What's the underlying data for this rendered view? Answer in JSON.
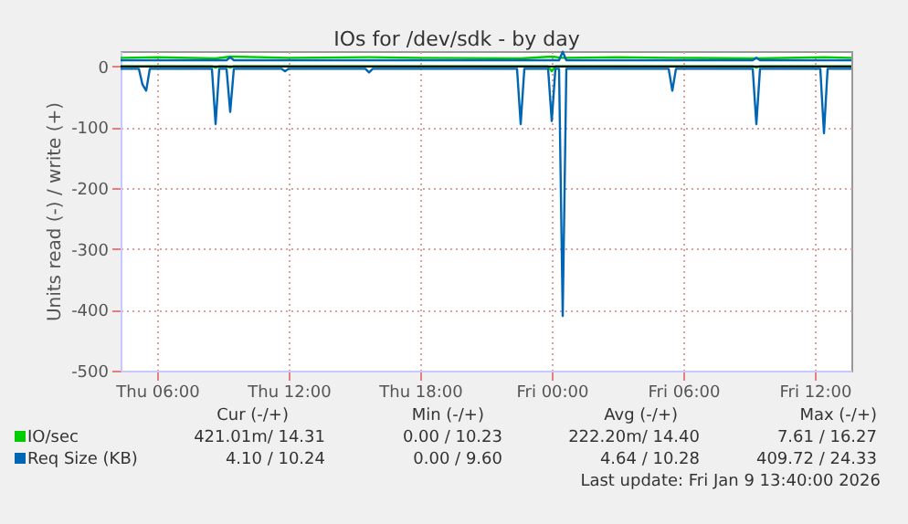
{
  "chart_data": {
    "type": "line",
    "title": "IOs for /dev/sdk - by day",
    "ylabel": "Units read (-) / write (+)",
    "xlim": [
      "2026-01-08T04:20",
      "2026-01-09T13:40"
    ],
    "xticks": [
      {
        "value": "2026-01-08T06:00",
        "label": "Thu 06:00"
      },
      {
        "value": "2026-01-08T12:00",
        "label": "Thu 12:00"
      },
      {
        "value": "2026-01-08T18:00",
        "label": "Thu 18:00"
      },
      {
        "value": "2026-01-09T00:00",
        "label": "Fri 00:00"
      },
      {
        "value": "2026-01-09T06:00",
        "label": "Fri 06:00"
      },
      {
        "value": "2026-01-09T12:00",
        "label": "Fri 12:00"
      }
    ],
    "ylim": [
      -500,
      25
    ],
    "yticks": [
      -500,
      -400,
      -300,
      -200,
      -100,
      0
    ],
    "grid": true,
    "legend": "bottom left",
    "ref_lines": [
      {
        "axis": "y",
        "value": 0,
        "color": "#000000"
      }
    ],
    "series": [
      {
        "name": "IO/sec",
        "color": "#00cc00",
        "x": [
          "2026-01-08T04:20",
          "2026-01-08T06:00",
          "2026-01-08T08:40",
          "2026-01-08T09:20",
          "2026-01-08T12:00",
          "2026-01-08T15:40",
          "2026-01-08T18:00",
          "2026-01-08T22:35",
          "2026-01-09T00:00",
          "2026-01-09T00:30",
          "2026-01-09T03:00",
          "2026-01-09T05:30",
          "2026-01-09T09:20",
          "2026-01-09T12:25",
          "2026-01-09T13:40"
        ],
        "values": [
          14,
          15,
          13,
          16,
          14,
          15,
          14,
          13,
          16,
          14,
          15,
          14,
          13,
          15,
          14
        ]
      },
      {
        "color": "#00cc00",
        "x": [
          "2026-01-08T04:20",
          "2026-01-08T08:30",
          "2026-01-08T08:40",
          "2026-01-08T08:50",
          "2026-01-08T09:10",
          "2026-01-08T09:20",
          "2026-01-08T09:30",
          "2026-01-08T23:50",
          "2026-01-09T00:00",
          "2026-01-09T00:10",
          "2026-01-09T09:10",
          "2026-01-09T09:20",
          "2026-01-09T09:30",
          "2026-01-09T13:40"
        ],
        "values": [
          0,
          0,
          -2,
          0,
          0,
          -2,
          0,
          0,
          -8,
          0,
          0,
          -2,
          0,
          0
        ]
      },
      {
        "name": "Req Size (KB)",
        "color": "#0066b3",
        "x": [
          "2026-01-08T04:20",
          "2026-01-08T09:10",
          "2026-01-08T09:20",
          "2026-01-08T09:30",
          "2026-01-09T00:20",
          "2026-01-09T00:30",
          "2026-01-09T00:40",
          "2026-01-09T09:10",
          "2026-01-09T09:20",
          "2026-01-09T09:30",
          "2026-01-09T13:40"
        ],
        "values": [
          10,
          10,
          15,
          10,
          10,
          24,
          10,
          10,
          14,
          10,
          10
        ]
      },
      {
        "color": "#0066b3",
        "x": [
          "2026-01-08T04:20",
          "2026-01-08T05:10",
          "2026-01-08T05:20",
          "2026-01-08T05:30",
          "2026-01-08T05:40",
          "2026-01-08T08:30",
          "2026-01-08T08:40",
          "2026-01-08T08:50",
          "2026-01-08T09:10",
          "2026-01-08T09:20",
          "2026-01-08T09:30",
          "2026-01-08T11:40",
          "2026-01-08T11:50",
          "2026-01-08T12:00",
          "2026-01-08T15:30",
          "2026-01-08T15:40",
          "2026-01-08T15:50",
          "2026-01-08T22:25",
          "2026-01-08T22:35",
          "2026-01-08T22:45",
          "2026-01-08T23:50",
          "2026-01-09T00:00",
          "2026-01-09T00:10",
          "2026-01-09T00:20",
          "2026-01-09T00:30",
          "2026-01-09T00:40",
          "2026-01-09T05:20",
          "2026-01-09T05:30",
          "2026-01-09T05:40",
          "2026-01-09T09:10",
          "2026-01-09T09:20",
          "2026-01-09T09:30",
          "2026-01-09T12:15",
          "2026-01-09T12:25",
          "2026-01-09T12:35",
          "2026-01-09T13:40"
        ],
        "values": [
          -4,
          -4,
          -30,
          -40,
          -4,
          -4,
          -95,
          -4,
          -4,
          -75,
          -4,
          -4,
          -8,
          -4,
          -4,
          -10,
          -4,
          -4,
          -95,
          -4,
          -4,
          -90,
          -4,
          -4,
          -410,
          -4,
          -4,
          -40,
          -4,
          -4,
          -95,
          -4,
          -4,
          -110,
          -4,
          -4
        ]
      }
    ],
    "annotations": [
      "Cur (-/+)",
      "Min (-/+)",
      "Avg (-/+)",
      "Max (-/+)",
      "421.01m/    14.31",
      "0.00 /    10.23",
      "222.20m/    14.40",
      "7.61 /    16.27",
      "4.10 /    10.24",
      "0.00 /     9.60",
      "4.64 /    10.28",
      "409.72 /    24.33",
      "Last update: Fri Jan  9 13:40:00 2026"
    ]
  }
}
